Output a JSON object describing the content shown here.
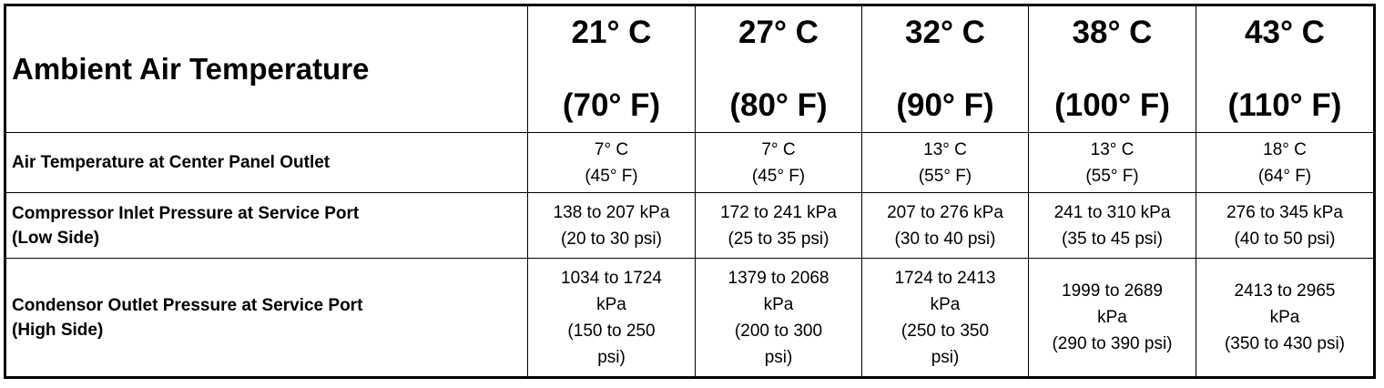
{
  "header": {
    "label": "Ambient Air Temperature",
    "temps": [
      {
        "c": "21° C",
        "f": "(70° F)"
      },
      {
        "c": "27° C",
        "f": "(80° F)"
      },
      {
        "c": "32° C",
        "f": "(90° F)"
      },
      {
        "c": "38° C",
        "f": "(100° F)"
      },
      {
        "c": "43° C",
        "f": "(110° F)"
      }
    ]
  },
  "rows": [
    {
      "label": [
        "Air Temperature at Center Panel Outlet"
      ],
      "cells": [
        [
          "7° C",
          "(45° F)"
        ],
        [
          "7° C",
          "(45° F)"
        ],
        [
          "13° C",
          "(55° F)"
        ],
        [
          "13° C",
          "(55° F)"
        ],
        [
          "18° C",
          "(64° F)"
        ]
      ]
    },
    {
      "label": [
        "Compressor Inlet Pressure at Service Port",
        "(Low Side)"
      ],
      "cells": [
        [
          "138 to 207 kPa",
          "(20 to 30 psi)"
        ],
        [
          "172 to 241 kPa",
          "(25 to 35 psi)"
        ],
        [
          "207 to 276 kPa",
          "(30 to 40 psi)"
        ],
        [
          "241 to 310 kPa",
          "(35 to 45 psi)"
        ],
        [
          "276 to 345 kPa",
          "(40 to 50 psi)"
        ]
      ]
    },
    {
      "label": [
        "Condensor Outlet Pressure at Service Port",
        "(High Side)"
      ],
      "cells": [
        [
          "1034 to 1724",
          "kPa",
          "(150 to 250",
          "psi)"
        ],
        [
          "1379 to 2068",
          "kPa",
          "(200 to 300",
          "psi)"
        ],
        [
          "1724 to 2413",
          "kPa",
          "(250 to 350",
          "psi)"
        ],
        [
          "1999 to 2689",
          "kPa",
          "(290 to 390 psi)"
        ],
        [
          "2413 to 2965",
          "kPa",
          "(350 to 430 psi)"
        ]
      ]
    }
  ]
}
